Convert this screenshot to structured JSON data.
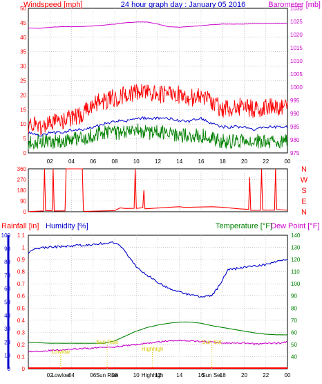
{
  "chart_data": [
    {
      "type": "line",
      "panel": "wind-barometer",
      "title": "24 hour graph day : January 05 2016",
      "ylabel_left": "Windspeed [mph]",
      "ylabel_right": "Barometer [mb]",
      "xtick_labels": [
        "02",
        "04",
        "06",
        "08",
        "10",
        "12",
        "14",
        "16",
        "18",
        "20",
        "22",
        "00"
      ],
      "xlim": [
        0,
        24
      ],
      "ylim_left": [
        0,
        50
      ],
      "ylim_right": [
        975,
        1030
      ],
      "yticks_left": [
        "0",
        "5",
        "10",
        "15",
        "20",
        "25",
        "30",
        "35",
        "40",
        "45",
        "50"
      ],
      "yticks_right": [
        "975",
        "980",
        "985",
        "990",
        "995",
        "1000",
        "1005",
        "1010",
        "1015",
        "1020",
        "1025",
        "1030"
      ],
      "grid": true,
      "colors": {
        "gust": "#ff0000",
        "average": "#0000cc",
        "speed": "#008000",
        "barometer": "#cc00cc",
        "left_axis": "#ff0000",
        "right_axis": "#cc00cc",
        "grid": "#b4b4b4"
      },
      "series": [
        {
          "role": "gust",
          "axis": "left",
          "x": [
            0,
            1,
            2,
            3,
            4,
            5,
            6,
            7,
            8,
            9,
            10,
            11,
            12,
            13,
            14,
            15,
            16,
            17,
            18,
            19,
            20,
            21,
            22,
            23,
            24
          ],
          "y": [
            10,
            9,
            10,
            11,
            12,
            13,
            17,
            18,
            19,
            20,
            21,
            21,
            20,
            21,
            20,
            19,
            20,
            18,
            15,
            16,
            16,
            15,
            16,
            16,
            16
          ]
        },
        {
          "role": "average",
          "axis": "left",
          "x": [
            0,
            1,
            2,
            3,
            4,
            5,
            6,
            7,
            8,
            9,
            10,
            11,
            12,
            13,
            14,
            15,
            16,
            17,
            18,
            19,
            20,
            21,
            22,
            23,
            24
          ],
          "y": [
            7,
            6,
            7,
            7,
            8,
            8,
            9,
            10,
            11,
            11,
            12,
            12,
            12,
            12,
            11,
            11,
            12,
            10,
            9,
            9,
            9,
            8,
            9,
            9,
            9
          ]
        },
        {
          "role": "speed",
          "axis": "left",
          "x": [
            0,
            1,
            2,
            3,
            4,
            5,
            6,
            7,
            8,
            9,
            10,
            11,
            12,
            13,
            14,
            15,
            16,
            17,
            18,
            19,
            20,
            21,
            22,
            23,
            24
          ],
          "y": [
            4,
            4,
            4,
            4,
            5,
            5,
            6,
            7,
            7,
            7,
            8,
            7,
            7,
            7,
            6,
            6,
            6,
            5,
            4,
            4,
            4,
            4,
            4,
            4,
            4
          ]
        },
        {
          "role": "barometer",
          "axis": "right",
          "x": [
            0,
            1,
            2,
            3,
            4,
            5,
            6,
            7,
            8,
            9,
            10,
            11,
            12,
            13,
            14,
            15,
            16,
            17,
            18,
            19,
            20,
            21,
            22,
            23,
            24
          ],
          "y": [
            1022.5,
            1022.4,
            1022.8,
            1023.0,
            1023.0,
            1023.1,
            1023.3,
            1023.6,
            1024.0,
            1024.5,
            1024.8,
            1024.8,
            1024.0,
            1023.0,
            1022.8,
            1023.1,
            1023.4,
            1023.8,
            1024.0,
            1024.0,
            1024.0,
            1024.2,
            1024.2,
            1024.3,
            1024.3
          ]
        }
      ]
    },
    {
      "type": "line",
      "panel": "wind-direction",
      "ylabel_right": [
        "N",
        "W",
        "S",
        "E",
        "N"
      ],
      "xlim": [
        0,
        24
      ],
      "ylim": [
        0,
        360
      ],
      "yticks_left": [
        "0",
        "90",
        "180",
        "270",
        "360"
      ],
      "grid": true,
      "colors": {
        "direction": "#ff0000",
        "left_axis": "#ff0000",
        "right_axis": "#ff0000"
      },
      "series": [
        {
          "role": "direction",
          "x": [
            0,
            1.4,
            1.5,
            1.6,
            2.2,
            2.3,
            2.4,
            3.4,
            3.5,
            3.6,
            5.0,
            5.1,
            5.2,
            8.0,
            8.5,
            9.0,
            9.8,
            9.9,
            10.0,
            10.6,
            10.7,
            10.8,
            13.5,
            14.0,
            14.5,
            17.0,
            18.0,
            19.5,
            20.4,
            20.5,
            20.6,
            21.5,
            21.6,
            21.7,
            22.8,
            22.9,
            23.0,
            24
          ],
          "y": [
            5,
            5,
            360,
            5,
            5,
            360,
            5,
            5,
            360,
            360,
            360,
            5,
            5,
            10,
            30,
            25,
            30,
            360,
            30,
            30,
            180,
            25,
            40,
            45,
            40,
            40,
            35,
            25,
            20,
            290,
            15,
            15,
            360,
            15,
            15,
            360,
            15,
            15
          ]
        }
      ]
    },
    {
      "type": "line",
      "panel": "rain-humidity-temp",
      "ylabel_left": "Rainfall [in]",
      "ylabel_left2": "Humidity [%]",
      "ylabel_right": "Temperature [°F]",
      "ylabel_right2": "Dew Point [°F]",
      "xtick_labels": [
        "02",
        "04",
        "06",
        "08",
        "10",
        "12",
        "14",
        "16",
        "18",
        "20",
        "22",
        "00"
      ],
      "xlim": [
        0,
        24
      ],
      "ylim_rain": [
        0,
        1.1
      ],
      "ylim_humidity": [
        0,
        100
      ],
      "ylim_temp": [
        30,
        140
      ],
      "yticks_rain": [
        "0",
        "0.1",
        "0.2",
        "0.3",
        "0.4",
        "0.5",
        "0.6",
        "0.7",
        "0.8",
        "0.9",
        "1",
        "1.1"
      ],
      "yticks_humidity": [
        "0",
        "10",
        "20",
        "30",
        "40",
        "50",
        "60",
        "70",
        "80",
        "90",
        "100"
      ],
      "yticks_temp": [
        "40",
        "50",
        "60",
        "70",
        "80",
        "90",
        "100",
        "110",
        "120",
        "130",
        "140"
      ],
      "grid": true,
      "colors": {
        "humidity": "#0000cc",
        "temperature": "#008000",
        "dewpoint": "#cc00cc",
        "rainfall": "#ff0000",
        "sun_markers": "#d8c800"
      },
      "series": [
        {
          "role": "humidity",
          "axis": "humidity",
          "x": [
            0,
            0.5,
            2,
            4,
            6,
            7,
            7.8,
            8.5,
            9.5,
            10,
            11,
            12,
            13,
            14,
            15,
            16,
            17,
            17.5,
            18.5,
            20,
            21,
            22,
            23,
            24
          ],
          "y": [
            87,
            90,
            91,
            92,
            93,
            94,
            94.5,
            92,
            82,
            76,
            70,
            65,
            60,
            58,
            55,
            54,
            55,
            60,
            74,
            76,
            77,
            78,
            80,
            82
          ]
        },
        {
          "role": "temperature",
          "axis": "temp",
          "x": [
            0,
            2,
            4,
            6,
            7,
            8,
            9,
            10,
            11,
            12,
            13,
            14,
            15,
            16,
            17,
            18,
            19,
            20,
            21,
            22,
            23,
            24
          ],
          "y": [
            52,
            51,
            51,
            51,
            51,
            53,
            57,
            61,
            64,
            66,
            67.5,
            68.5,
            68.5,
            67.5,
            65.5,
            64,
            62.5,
            61,
            59.5,
            58.5,
            58,
            58
          ]
        },
        {
          "role": "dewpoint",
          "axis": "temp",
          "x": [
            0,
            2,
            4,
            6,
            7,
            8,
            9,
            10,
            11,
            12,
            13,
            14,
            15,
            16,
            17,
            18,
            19,
            20,
            21,
            22,
            23,
            24
          ],
          "y": [
            44,
            45,
            46,
            47,
            48,
            48,
            49,
            50,
            51,
            52,
            53,
            53.5,
            53,
            52.5,
            52,
            51.5,
            51,
            51,
            50.5,
            51,
            51,
            52
          ]
        },
        {
          "role": "rainfall",
          "axis": "rain",
          "x": [
            0,
            24
          ],
          "y": [
            0,
            0
          ]
        }
      ],
      "sun_events": [
        {
          "label": "Lowlow",
          "x": 3.0
        },
        {
          "label": "Sun Rise",
          "x": 7.3
        },
        {
          "label": "Highhigh",
          "x": 11.5
        },
        {
          "label": "Sun Set",
          "x": 17.0
        }
      ],
      "bottom_labels": [
        "Lowlow",
        "Sun Rise",
        "Highhigh",
        "Sun Set"
      ]
    }
  ]
}
